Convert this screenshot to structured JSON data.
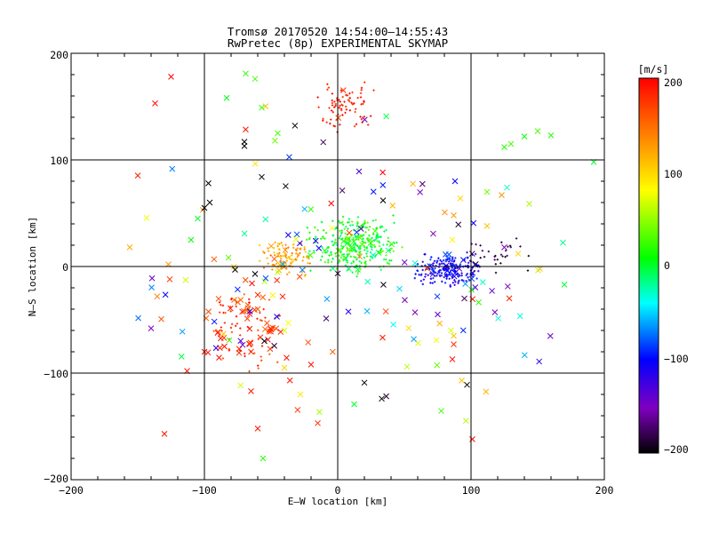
{
  "chart_data": {
    "type": "scatter",
    "title": "Tromsø 20170520 14:54:00–14:55:43",
    "subtitle": "RwPretec (8p) EXPERIMENTAL SKYMAP",
    "xlabel": "E–W location [km]",
    "ylabel": "N–S location [km]",
    "xlim": [
      -200,
      200
    ],
    "ylim": [
      -200,
      200
    ],
    "xticks": [
      "−200",
      "−100",
      "0",
      "100",
      "200"
    ],
    "yticks": [
      "−200",
      "−100",
      "0",
      "100",
      "200"
    ],
    "grid": "lines at 0 and ±100 km",
    "colorbar": {
      "label": "[m/s]",
      "ticks": [
        "200",
        "100",
        "0",
        "−100",
        "−200"
      ],
      "range": [
        -200,
        200
      ],
      "colormap": [
        "#000000",
        "#7f00c0",
        "#0000ff",
        "#00ffff",
        "#00ff00",
        "#ffff00",
        "#ff8000",
        "#ff0000"
      ]
    },
    "point_markers": [
      "x (large)",
      "+ (small)"
    ],
    "clusters": [
      {
        "name": "north-red",
        "x": [
          -20,
          30
        ],
        "y": [
          125,
          175
        ],
        "v": [
          170,
          200
        ],
        "n": 80,
        "marker": "small"
      },
      {
        "name": "center-green",
        "x": [
          -25,
          50
        ],
        "y": [
          -10,
          50
        ],
        "v": [
          -20,
          40
        ],
        "n": 320,
        "marker": "small"
      },
      {
        "name": "west-orange",
        "x": [
          -60,
          -20
        ],
        "y": [
          -10,
          25
        ],
        "v": [
          100,
          150
        ],
        "n": 110,
        "marker": "small"
      },
      {
        "name": "east-blue",
        "x": [
          55,
          110
        ],
        "y": [
          -20,
          15
        ],
        "v": [
          -130,
          -80
        ],
        "n": 220,
        "marker": "small"
      },
      {
        "name": "east-black",
        "x": [
          95,
          150
        ],
        "y": [
          -10,
          30
        ],
        "v": [
          -200,
          -170
        ],
        "n": 30,
        "marker": "small"
      },
      {
        "name": "southwest-red",
        "x": [
          -105,
          -30
        ],
        "y": [
          -100,
          -10
        ],
        "v": [
          150,
          200
        ],
        "n": 110,
        "marker": "mixed"
      },
      {
        "name": "scatter-mixed",
        "x": [
          -190,
          190
        ],
        "y": [
          -180,
          180
        ],
        "v": [
          -200,
          200
        ],
        "n": 140,
        "marker": "x"
      }
    ],
    "points": [
      [
        -125,
        178,
        200
      ],
      [
        -137,
        153,
        195
      ],
      [
        -69,
        181,
        20
      ],
      [
        -62,
        176,
        30
      ],
      [
        -57,
        149,
        20
      ],
      [
        -70,
        117,
        -200
      ],
      [
        -70,
        113,
        -200
      ],
      [
        -47,
        118,
        40
      ],
      [
        -45,
        125,
        30
      ],
      [
        125,
        112,
        20
      ],
      [
        130,
        115,
        30
      ],
      [
        140,
        122,
        10
      ],
      [
        150,
        127,
        30
      ],
      [
        160,
        123,
        20
      ],
      [
        192,
        98,
        0
      ],
      [
        -96,
        60,
        -200
      ],
      [
        -100,
        55,
        -200
      ],
      [
        -97,
        78,
        -200
      ],
      [
        -57,
        84,
        -200
      ],
      [
        34,
        62,
        -200
      ],
      [
        -156,
        18,
        120
      ],
      [
        -127,
        2,
        130
      ],
      [
        -140,
        -58,
        -150
      ],
      [
        -126,
        -12,
        170
      ],
      [
        -130,
        -157,
        190
      ],
      [
        101,
        -162,
        195
      ],
      [
        -60,
        -152,
        190
      ],
      [
        -56,
        -180,
        20
      ],
      [
        -65,
        -117,
        190
      ],
      [
        -113,
        -98,
        190
      ],
      [
        -100,
        -80,
        190
      ],
      [
        -65,
        -80,
        180
      ],
      [
        -85,
        -75,
        190
      ],
      [
        -55,
        -70,
        -200
      ],
      [
        -60,
        -40,
        160
      ],
      [
        20,
        -109,
        -200
      ],
      [
        33,
        -124,
        -200
      ],
      [
        97,
        -111,
        -200
      ],
      [
        93,
        -107,
        110
      ],
      [
        86,
        -87,
        190
      ],
      [
        87,
        -73,
        180
      ],
      [
        87,
        -65,
        110
      ],
      [
        -40,
        -60,
        70
      ],
      [
        -37,
        -53,
        80
      ],
      [
        52,
        -94,
        60
      ],
      [
        -28,
        -120,
        90
      ],
      [
        -40,
        -95,
        100
      ],
      [
        -20,
        -92,
        190
      ],
      [
        58,
        -43,
        -150
      ],
      [
        95,
        -30,
        -170
      ],
      [
        75,
        -45,
        -140
      ],
      [
        85,
        -60,
        70
      ],
      [
        125,
        18,
        -150
      ],
      [
        170,
        -17,
        0
      ],
      [
        112,
        70,
        40
      ],
      [
        88,
        80,
        -100
      ],
      [
        112,
        38,
        110
      ],
      [
        87,
        48,
        130
      ],
      [
        123,
        67,
        130
      ],
      [
        127,
        74,
        -30
      ],
      [
        -77,
        -3,
        -200
      ],
      [
        -62,
        -7,
        -200
      ],
      [
        -105,
        45,
        0
      ],
      [
        -110,
        25,
        10
      ]
    ]
  }
}
